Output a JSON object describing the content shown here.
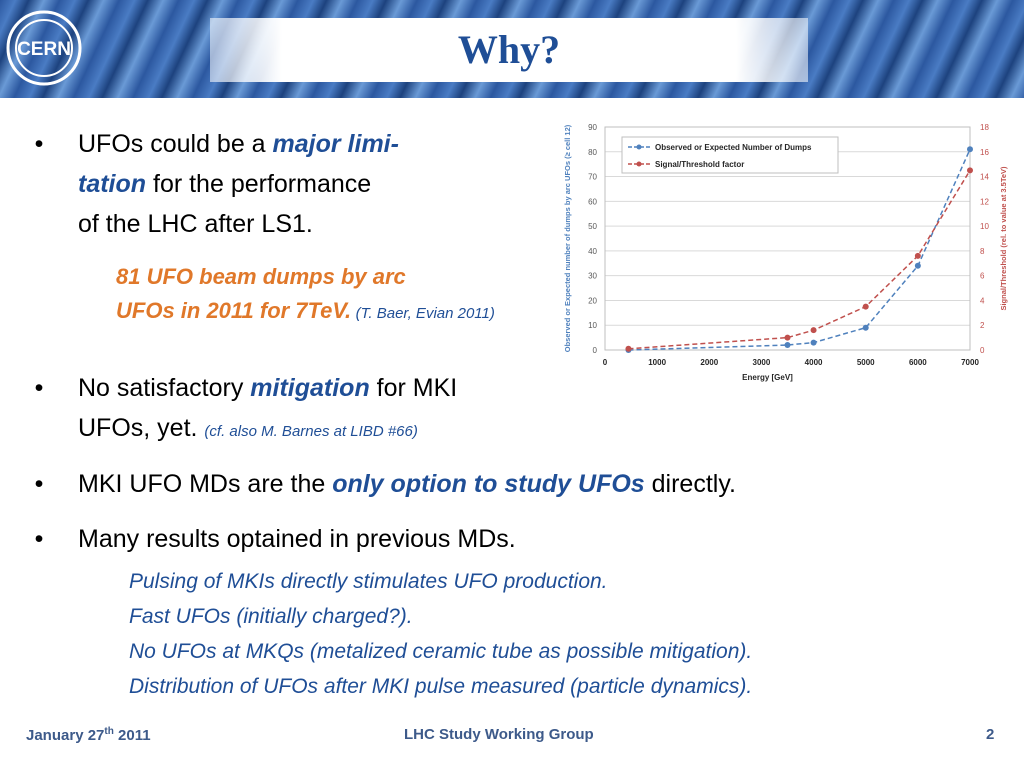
{
  "header": {
    "title": "Why?",
    "logo_text": "CERN"
  },
  "bullets": [
    {
      "pre": "UFOs could be a ",
      "hl": "major limi-",
      "line2_hl": "tation",
      "line2": " for the performance",
      "line3": "of the LHC after LS1."
    },
    {
      "pre": "No satisfactory ",
      "hl": "mitigation",
      "post": " for MKI",
      "line2": "UFOs, yet.",
      "note": "(cf. also M. Barnes at LIBD #66)"
    },
    {
      "pre": "MKI UFO MDs are the ",
      "hl": "only option to study UFOs",
      "post": " directly."
    },
    {
      "text": "Many results optained in previous MDs."
    }
  ],
  "highlight": {
    "line1": "81 UFO beam dumps by arc",
    "line2": "UFOs in 2011 for 7TeV.",
    "ref": "(T. Baer, Evian 2011)"
  },
  "sub_points": [
    "Pulsing of MKIs directly stimulates UFO production.",
    "Fast UFOs (initially charged?).",
    "No UFOs at MKQs (metalized ceramic tube as possible mitigation).",
    "Distribution of UFOs after MKI pulse measured (particle dynamics)."
  ],
  "footer": {
    "date": "January 27",
    "date_sup": "th",
    "year": "2011",
    "center": "LHC Study Working Group",
    "page": "2"
  },
  "chart_data": {
    "type": "line",
    "xlabel": "Energy [GeV]",
    "ylabel": "Observed or Expected number of dumps by arc UFOs (≥ cell 12)",
    "y2label": "Signal/Threshold (rel. to value at 3.5TeV)",
    "xlim": [
      0,
      7000
    ],
    "ylim": [
      0,
      90
    ],
    "y2lim": [
      0,
      18
    ],
    "xticks": [
      0,
      1000,
      2000,
      3000,
      4000,
      5000,
      6000,
      7000
    ],
    "yticks": [
      0,
      10,
      20,
      30,
      40,
      50,
      60,
      70,
      80,
      90
    ],
    "y2ticks": [
      0,
      2,
      4,
      6,
      8,
      10,
      12,
      14,
      16,
      18
    ],
    "grid": true,
    "legend_position": "top-left",
    "series": [
      {
        "name": "Observed or Expected Number of Dumps",
        "axis": "left",
        "color": "#4f81bd",
        "x": [
          450,
          3500,
          4000,
          5000,
          6000,
          7000
        ],
        "y": [
          0,
          2,
          3,
          9,
          34,
          81
        ]
      },
      {
        "name": "Signal/Threshold factor",
        "axis": "right",
        "color": "#c0504d",
        "x": [
          450,
          3500,
          4000,
          5000,
          6000,
          7000
        ],
        "y": [
          0.1,
          1,
          1.6,
          3.5,
          7.6,
          14.5
        ]
      }
    ]
  }
}
